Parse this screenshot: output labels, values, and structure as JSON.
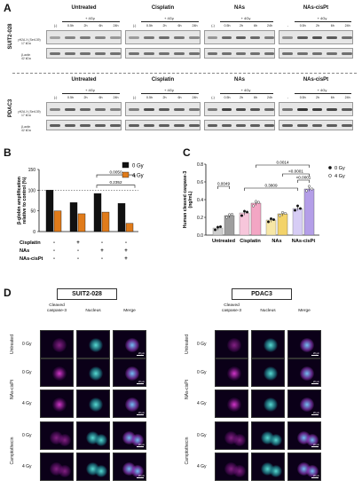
{
  "panels": {
    "a": "A",
    "b": "B",
    "c": "C",
    "d": "D"
  },
  "blots": {
    "lines": [
      "SUIT2-028",
      "PDAC3"
    ],
    "groups": [
      "Untreated",
      "Cisplatin",
      "NAs",
      "NAs-cisPt"
    ],
    "irradiation": "+ 4Gy",
    "lanes": [
      "(-)",
      "0.5h",
      "2h",
      "6h",
      "24h"
    ],
    "lanes_alt": [
      "-",
      "0.5h",
      "2h",
      "6h",
      "24h"
    ],
    "marker1": "γH2A.X (Ser139)",
    "marker1_kda": "17 kDa",
    "marker2": "β-actin",
    "marker2_kda": "42 kDa"
  },
  "chart_b": {
    "ylabel": "β-globin amplification relative to control (%)",
    "yticks": [
      "0",
      "50",
      "100",
      "150"
    ],
    "legend": [
      "0 Gy",
      "4 Gy"
    ],
    "rows": [
      "Cisplatin",
      "NAs",
      "NAs-cisPt"
    ],
    "signs": [
      [
        "-",
        "+",
        "-",
        "-"
      ],
      [
        "-",
        "-",
        "+",
        "+"
      ],
      [
        "-",
        "-",
        "-",
        "+"
      ]
    ],
    "pvalues": [
      "0.0050",
      "0.2352"
    ],
    "colors": {
      "gy0": "#111111",
      "gy4": "#e07b1a"
    }
  },
  "chart_c": {
    "ylabel": "Human cleaved caspase-3 (ng/mL)",
    "yticks": [
      "0.0",
      "0.2",
      "0.4",
      "0.6",
      "0.8"
    ],
    "categories": [
      "Untreated",
      "Cisplatin",
      "NAs",
      "NAs-cisPt"
    ],
    "legend": [
      "0 Gy",
      "4 Gy"
    ],
    "pvalues": [
      "0.0014",
      "<0.0001",
      "0.0049",
      "0.3809",
      "<0.0001"
    ]
  },
  "chart_data": [
    {
      "type": "bar",
      "title": "",
      "ylabel": "β-globin amplification relative to control (%)",
      "ylim": [
        0,
        150
      ],
      "categories": [
        "-/-/-",
        "+/-/-",
        "-/+/-",
        "-/+/+"
      ],
      "series": [
        {
          "name": "0 Gy",
          "values": [
            100,
            70,
            92,
            68
          ]
        },
        {
          "name": "4 Gy",
          "values": [
            50,
            43,
            47,
            20
          ]
        }
      ]
    },
    {
      "type": "bar",
      "title": "",
      "ylabel": "Human cleaved caspase-3 (ng/mL)",
      "ylim": [
        0,
        0.8
      ],
      "categories": [
        "Untreated",
        "Cisplatin",
        "NAs",
        "NAs-cisPt"
      ],
      "series": [
        {
          "name": "0 Gy",
          "values": [
            0.08,
            0.25,
            0.17,
            0.3
          ],
          "color": "#888888"
        },
        {
          "name": "4 Gy",
          "values": [
            0.22,
            0.36,
            0.24,
            0.52
          ],
          "color": "#b49ee8"
        }
      ],
      "bar_colors": {
        "gy0": [
          "#cfcfcf",
          "#f7c6db",
          "#f7e7a6",
          "#d7cdf5"
        ],
        "gy4": [
          "#9e9e9e",
          "#f3a6c4",
          "#f3d36a",
          "#b49ee8"
        ]
      }
    }
  ],
  "micro": {
    "lines": [
      "SUIT2-028",
      "PDAC3"
    ],
    "columns": [
      "Cleaved caspase-3",
      "Nucleus",
      "Merge"
    ],
    "groups": [
      "Untreated",
      "NAs-cisPt",
      "Camptothecin"
    ],
    "doses": [
      "0 Gy",
      "0 Gy",
      "4 Gy",
      "0 Gy",
      "4 Gy"
    ],
    "scale": "20 µm"
  }
}
